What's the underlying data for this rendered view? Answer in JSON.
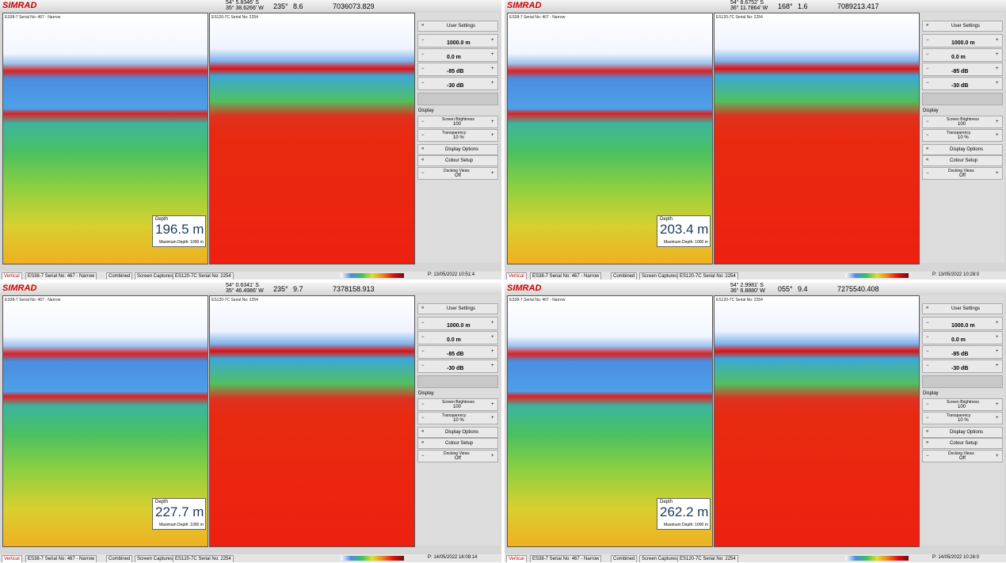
{
  "common": {
    "brand": "SIMRAD",
    "collapse": "«",
    "minus": "−",
    "plus": "+",
    "echogram_labels": [
      "ES38-7 Serial No: 467 - Narrow",
      "ES120-7C Serial No: 2254"
    ],
    "depth_label": "Depth",
    "max_depth": "Maximum Depth: 1000 m",
    "sidebar": {
      "title": "User Settings",
      "rows": [
        "1000.0 m",
        "0.0 m",
        "-85 dB",
        "-30 dB"
      ],
      "section": "Display",
      "brightness": {
        "label": "Screen Brightness",
        "value": "100"
      },
      "transparency": {
        "label": "Transparency",
        "value": "10 %"
      },
      "display_options": "Display Options",
      "colour_setup": "Colour Setup",
      "docking": {
        "label": "Docking Views",
        "value": "Off"
      }
    },
    "tabs": [
      "Vertical",
      "ES38-7 Serial No: 467 - Narrow",
      "Combined",
      "Screen Captures",
      "ES120-7C Serial No: 2254"
    ]
  },
  "panels": [
    {
      "latitude": "54° 5.8346' S",
      "longitude": "35° 38.6266' W",
      "heading": "235°",
      "speed": "8.6",
      "distance": "7036073.829",
      "depth": "196.5 m",
      "timestamp": "P: 13/05/2022 10:51:4"
    },
    {
      "latitude": "54° 8.6752' S",
      "longitude": "36° 11.7864' W",
      "heading": "168°",
      "speed": "1.6",
      "distance": "7089213.417",
      "depth": "203.4 m",
      "timestamp": "P: 13/05/2022 10:28:0"
    },
    {
      "latitude": "54° 0.6341' S",
      "longitude": "35° 46.4986' W",
      "heading": "235°",
      "speed": "9.7",
      "distance": "7378158.913",
      "depth": "227.7 m",
      "timestamp": "P: 14/05/2022 16:08:14"
    },
    {
      "latitude": "54° 2.9981' S",
      "longitude": "36° 6.8880' W",
      "heading": "055°",
      "speed": "9.4",
      "distance": "7275540.408",
      "depth": "262.2 m",
      "timestamp": "P: 14/05/2022 10:26:0"
    }
  ]
}
